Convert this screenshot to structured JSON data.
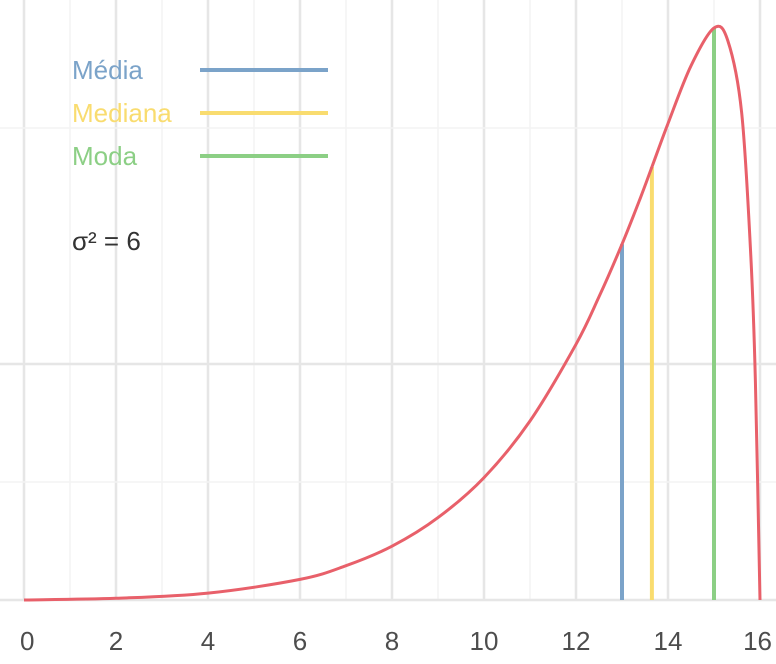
{
  "chart_data": {
    "type": "line",
    "title": "",
    "xlabel": "",
    "ylabel": "",
    "xlim": [
      0,
      16
    ],
    "x_ticks": [
      0,
      2,
      4,
      6,
      8,
      10,
      12,
      14,
      16
    ],
    "x_tick_labels": [
      "0",
      "2",
      "4",
      "6",
      "8",
      "10",
      "12",
      "14",
      "16"
    ],
    "y_ticks_labeled": false,
    "grid": true,
    "legend_position": "top-left",
    "annotation": "σ² = 6",
    "curve": {
      "color": "#e8606a",
      "x": [
        0,
        2,
        4,
        6,
        7,
        8,
        9,
        10,
        11,
        12,
        12.5,
        13,
        13.4,
        13.65,
        14,
        14.5,
        15,
        15.3,
        15.6,
        15.8,
        15.9,
        16
      ],
      "y": [
        0.0,
        0.003,
        0.012,
        0.036,
        0.06,
        0.094,
        0.144,
        0.214,
        0.313,
        0.447,
        0.53,
        0.622,
        0.703,
        0.757,
        0.833,
        0.934,
        1.0,
        0.978,
        0.853,
        0.602,
        0.382,
        0.0
      ]
    },
    "series": [
      {
        "name": "Média",
        "x": 13.0,
        "y_top": 0.622,
        "color": "#7ba3c9"
      },
      {
        "name": "Mediana",
        "x": 13.65,
        "y_top": 0.757,
        "color": "#f9dc6f"
      },
      {
        "name": "Moda",
        "x": 15.0,
        "y_top": 1.0,
        "color": "#8ccf85"
      }
    ]
  }
}
